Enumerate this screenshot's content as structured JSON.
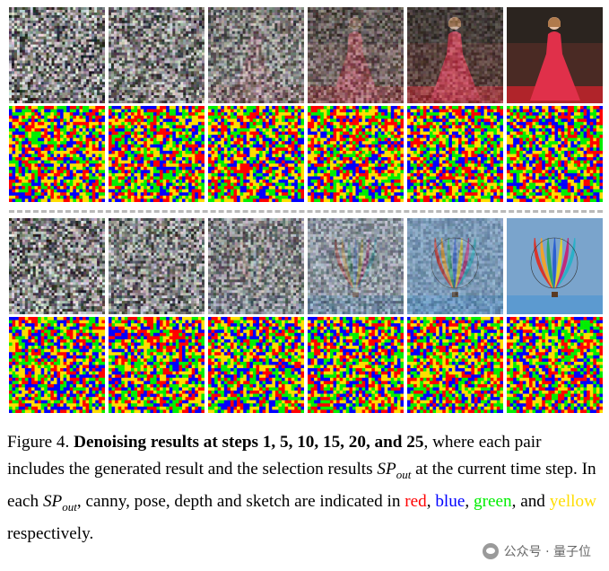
{
  "figure": {
    "rows": [
      {
        "type": "photo",
        "subject": "woman-red-dress",
        "steps": [
          1,
          5,
          10,
          15,
          20,
          25
        ]
      },
      {
        "type": "selection",
        "steps": [
          1,
          5,
          10,
          15,
          20,
          25
        ]
      },
      {
        "type": "photo",
        "subject": "hot-air-balloon",
        "steps": [
          1,
          5,
          10,
          15,
          20,
          25
        ]
      },
      {
        "type": "selection",
        "steps": [
          1,
          5,
          10,
          15,
          20,
          25
        ]
      }
    ],
    "colors": {
      "red": "#ff0000",
      "blue": "#0000ff",
      "green": "#00ee00",
      "yellow": "#ffdd00"
    }
  },
  "caption": {
    "label": "Figure 4.",
    "bold": "Denoising results at steps 1, 5, 10, 15, 20, and 25",
    "part1": ", where each pair includes the generated result and the selection results ",
    "math_base": "SP",
    "math_sub": "out",
    "part2": " at the current time step. In each ",
    "part3": ", canny, pose, depth and sketch are indicated in ",
    "red": "red",
    "comma1": ", ",
    "blue": "blue",
    "comma2": ", ",
    "green": "green",
    "and": ", and ",
    "yellow": "yellow",
    "end": " respectively."
  },
  "watermark": {
    "text": "公众号 · 量子位"
  }
}
